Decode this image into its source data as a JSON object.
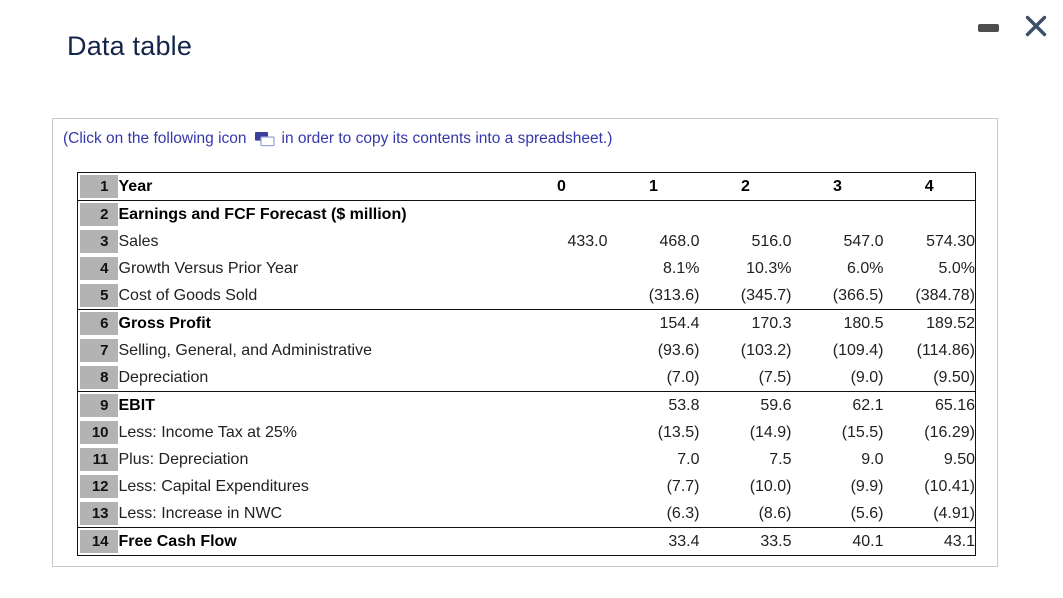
{
  "window": {
    "title": "Data table"
  },
  "panel": {
    "instruction_before_icon": "(Click on the following icon",
    "instruction_after_icon": "in order to copy its contents into a spreadsheet.)"
  },
  "colors": {
    "title_navy": "#14254a",
    "instruction_blue": "#3538aa",
    "row_number_bg": "#b3b3b3",
    "table_border": "#111111",
    "dialog_border": "#c9c9c9",
    "minus_icon": "#4d4d4d",
    "close_icon": "#3d4f66",
    "copy_icon_fill": "#3a3f9e"
  },
  "table": {
    "rows": [
      {
        "num": "1",
        "label": "Year",
        "label_bold": true,
        "values": [
          "0",
          "1",
          "2",
          "3",
          "4"
        ],
        "values_bold": true,
        "values_align": "center",
        "rule_below": true
      },
      {
        "num": "2",
        "label": "Earnings and FCF Forecast ($ million)",
        "label_bold": true,
        "values": [
          "",
          "",
          "",
          "",
          ""
        ]
      },
      {
        "num": "3",
        "label": "Sales",
        "values": [
          "433.0",
          "468.0",
          "516.0",
          "547.0",
          "574.30"
        ]
      },
      {
        "num": "4",
        "label": "Growth Versus Prior Year",
        "values": [
          "",
          "8.1%",
          "10.3%",
          "6.0%",
          "5.0%"
        ]
      },
      {
        "num": "5",
        "label": "Cost of Goods Sold",
        "values": [
          "",
          "(313.6)",
          "(345.7)",
          "(366.5)",
          "(384.78)"
        ],
        "rule_below": true
      },
      {
        "num": "6",
        "label": "Gross Profit",
        "label_bold": true,
        "values": [
          "",
          "154.4",
          "170.3",
          "180.5",
          "189.52"
        ]
      },
      {
        "num": "7",
        "label": "Selling, General, and Administrative",
        "values": [
          "",
          "(93.6)",
          "(103.2)",
          "(109.4)",
          "(114.86)"
        ]
      },
      {
        "num": "8",
        "label": "Depreciation",
        "values": [
          "",
          "(7.0)",
          "(7.5)",
          "(9.0)",
          "(9.50)"
        ],
        "rule_below": true
      },
      {
        "num": "9",
        "label": "EBIT",
        "label_bold": true,
        "values": [
          "",
          "53.8",
          "59.6",
          "62.1",
          "65.16"
        ]
      },
      {
        "num": "10",
        "label": "Less: Income Tax at 25%",
        "values": [
          "",
          "(13.5)",
          "(14.9)",
          "(15.5)",
          "(16.29)"
        ]
      },
      {
        "num": "11",
        "label": "Plus: Depreciation",
        "values": [
          "",
          "7.0",
          "7.5",
          "9.0",
          "9.50"
        ]
      },
      {
        "num": "12",
        "label": "Less: Capital Expenditures",
        "values": [
          "",
          "(7.7)",
          "(10.0)",
          "(9.9)",
          "(10.41)"
        ]
      },
      {
        "num": "13",
        "label": "Less: Increase in NWC",
        "values": [
          "",
          "(6.3)",
          "(8.6)",
          "(5.6)",
          "(4.91)"
        ],
        "rule_below": true
      },
      {
        "num": "14",
        "label": "Free Cash Flow",
        "label_bold": true,
        "values": [
          "",
          "33.4",
          "33.5",
          "40.1",
          "43.1"
        ]
      }
    ]
  }
}
